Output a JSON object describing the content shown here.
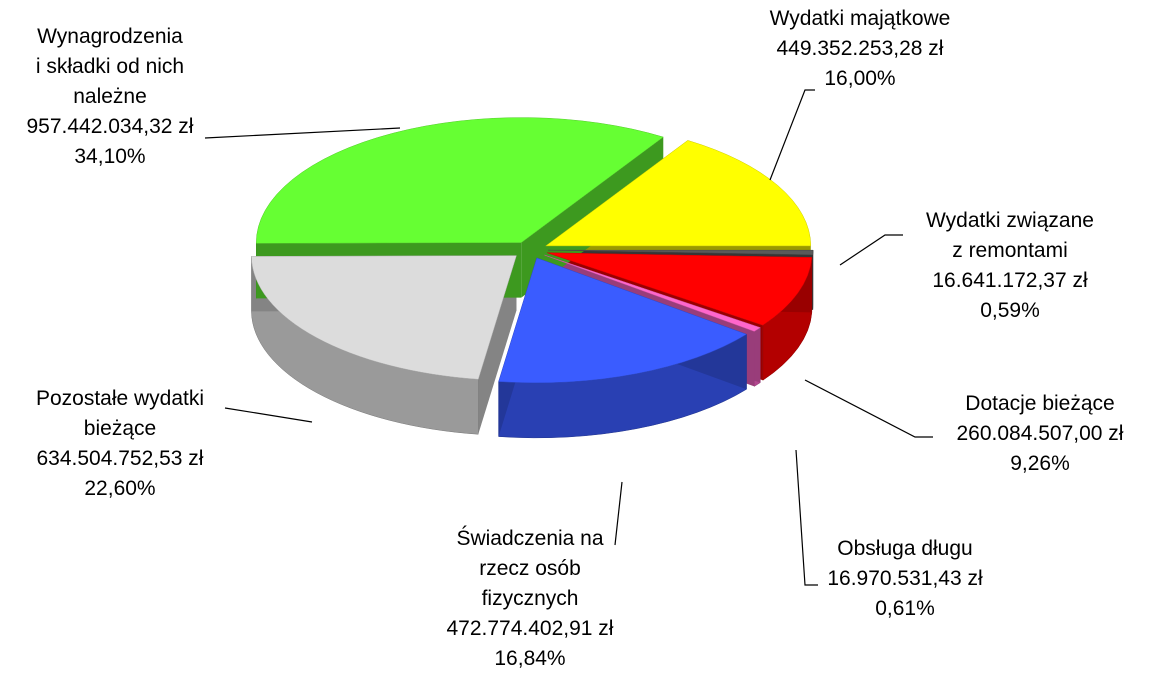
{
  "chart_data": {
    "type": "pie",
    "categories": [
      "Wydatki majątkowe",
      "Wydatki związane\nz remontami",
      "Dotacje bieżące",
      "Obsługa długu",
      "Świadczenia na\nrzecz osób\nfizycznych",
      "Pozostałe wydatki\nbieżące",
      "Wynagrodzenia\ni składki od nich\nnależne"
    ],
    "values": [
      16.0,
      0.59,
      9.26,
      0.61,
      16.84,
      22.6,
      34.1
    ],
    "value_labels": [
      "16,00%",
      "0,59%",
      "9,26%",
      "0,61%",
      "16,84%",
      "22,60%",
      "34,10%"
    ],
    "amounts": [
      449352253.28,
      16641172.37,
      260084507.0,
      16970531.43,
      472774402.91,
      634504752.53,
      957442034.32
    ],
    "amount_labels": [
      "449.352.253,28 zł",
      "16.641.172,37 zł",
      "260.084.507,00 zł",
      "16.970.531,43 zł",
      "472.774.402,91 zł",
      "634.504.752,53 zł",
      "957.442.034,32 zł"
    ],
    "colors": [
      "#ffff00",
      "#5a5a5a",
      "#ff0000",
      "#ff66cc",
      "#3a5cff",
      "#dcdcdc",
      "#66ff33"
    ]
  }
}
